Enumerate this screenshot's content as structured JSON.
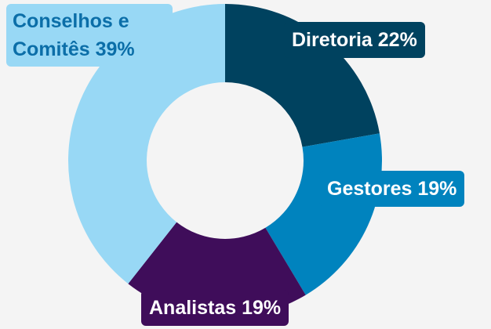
{
  "chart_data": {
    "type": "donut",
    "categories": [
      "Diretoria",
      "Gestores",
      "Analistas",
      "Conselhos e Comitês"
    ],
    "values": [
      22,
      19,
      19,
      39
    ],
    "value_labels": [
      "22%",
      "19%",
      "19%",
      "39%"
    ],
    "colors": [
      "#00425f",
      "#0083be",
      "#3f0d5a",
      "#98d8f5"
    ]
  }
}
